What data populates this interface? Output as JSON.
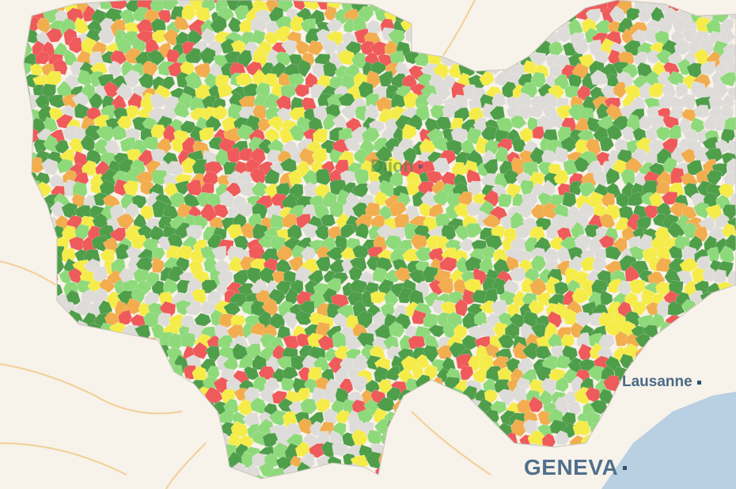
{
  "map": {
    "cities": {
      "lausanne": "Lausanne",
      "geneva": "GENEVA",
      "dijon": "Dijon"
    },
    "legend_colors": {
      "dark_green": "#4f9e4a",
      "light_green": "#8ed97a",
      "yellow": "#f5ec4a",
      "orange": "#f2ad4e",
      "red": "#ef5a5a",
      "no_data": "#dedcd8"
    },
    "basemap_colors": {
      "land": "#f7f2ea",
      "water": "#b9cfe2",
      "roads": "#f3cf96"
    }
  }
}
